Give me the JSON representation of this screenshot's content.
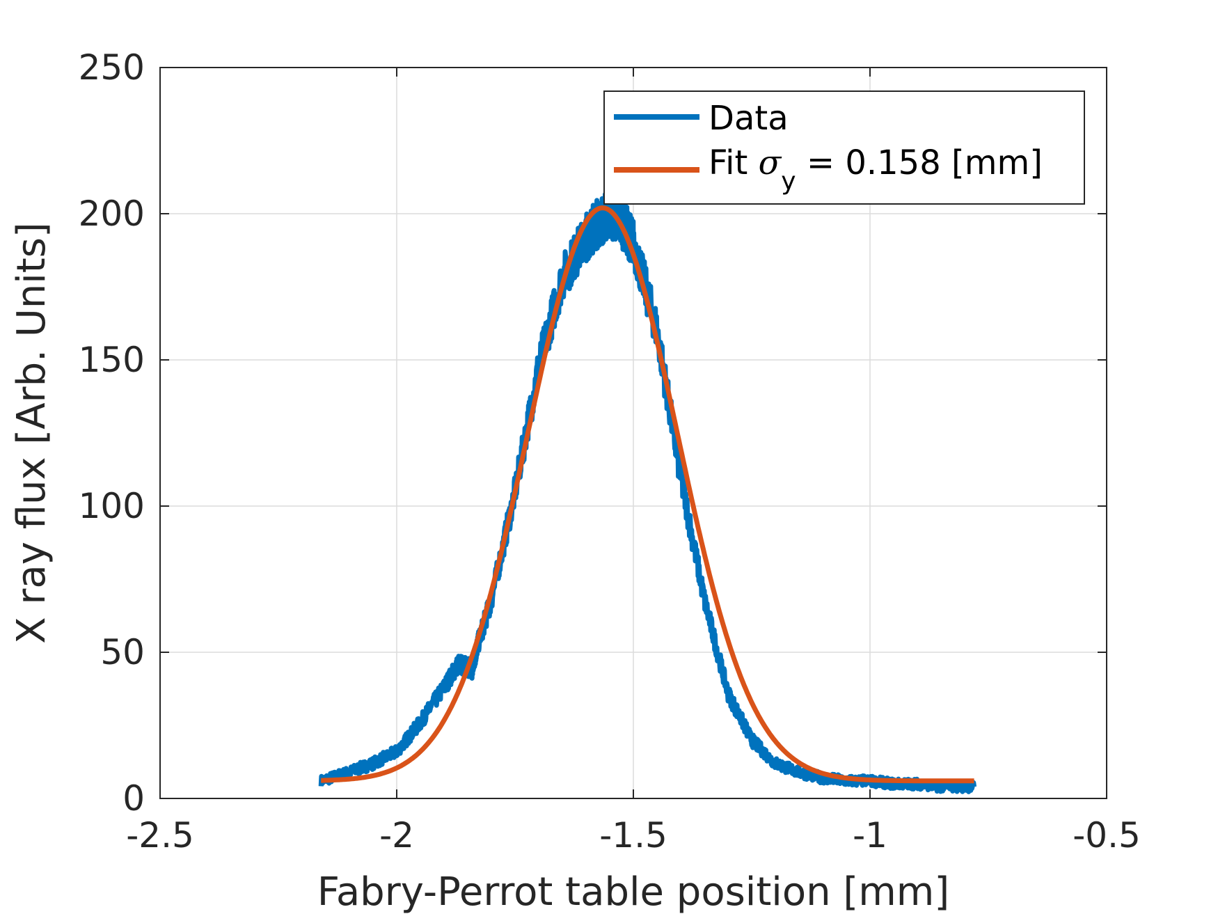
{
  "chart_data": {
    "type": "line",
    "xlabel": "Fabry-Perrot table position [mm]",
    "ylabel": "X ray flux [Arb. Units]",
    "xlim": [
      -2.5,
      -0.5
    ],
    "ylim": [
      0,
      250
    ],
    "xticks": [
      -2.5,
      -2,
      -1.5,
      -1,
      -0.5
    ],
    "xtick_labels": [
      "-2.5",
      "-2",
      "-1.5",
      "-1",
      "-0.5"
    ],
    "yticks": [
      0,
      50,
      100,
      150,
      200,
      250
    ],
    "ytick_labels": [
      "0",
      "50",
      "100",
      "150",
      "200",
      "250"
    ],
    "grid": true,
    "legend_location": "top-right",
    "legend": {
      "data_label": "Data",
      "fit_prefix": "Fit ",
      "fit_symbol": "σ",
      "fit_subscript": "y",
      "fit_suffix": " = 0.158 [mm]"
    },
    "series": [
      {
        "name": "Data",
        "color": "#0072BD",
        "x": [
          -2.16,
          -2.1,
          -2.05,
          -2.0,
          -1.95,
          -1.9,
          -1.87,
          -1.85,
          -1.84,
          -1.83,
          -1.8,
          -1.75,
          -1.7,
          -1.65,
          -1.6,
          -1.58,
          -1.55,
          -1.52,
          -1.5,
          -1.45,
          -1.4,
          -1.35,
          -1.3,
          -1.25,
          -1.2,
          -1.15,
          -1.1,
          -1.05,
          -1.0,
          -0.95,
          -0.9,
          -0.85,
          -0.78
        ],
        "y": [
          6,
          9,
          12,
          16,
          26,
          38,
          46,
          45,
          44,
          52,
          68,
          105,
          148,
          178,
          192,
          196,
          200,
          196,
          190,
          160,
          110,
          68,
          36,
          20,
          12,
          9,
          7,
          6,
          6,
          5,
          5,
          4,
          4
        ]
      },
      {
        "name": "Fit",
        "color": "#D95319",
        "model": "gaussian",
        "x_range": [
          -2.16,
          -0.78
        ],
        "amplitude": 196,
        "center": -1.565,
        "sigma": 0.158,
        "offset": 6
      }
    ]
  }
}
